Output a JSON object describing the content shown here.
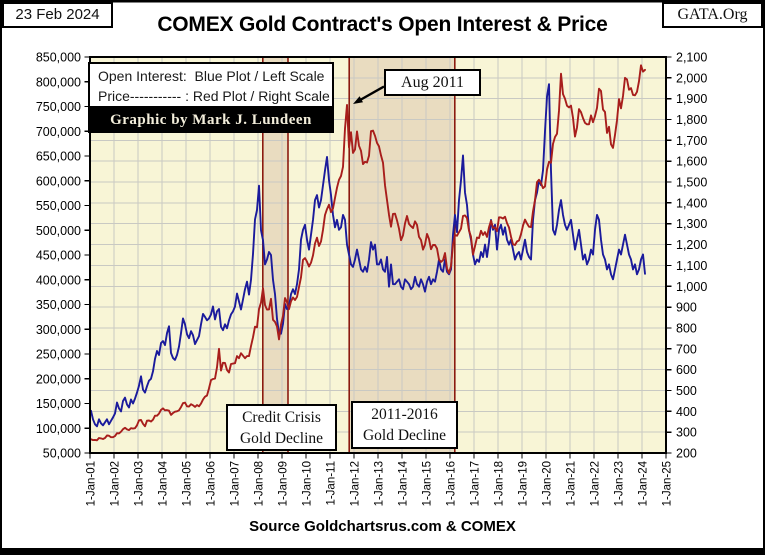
{
  "page": {
    "date": "23 Feb 2024",
    "site": "GATA.Org",
    "source": "Source Goldchartsrus.com & COMEX",
    "credit": "Graphic by Mark J. Lundeen"
  },
  "legend": {
    "line1": "Open Interest:  Blue Plot / Left Scale",
    "line2": "Price----------- : Red Plot / Right Scale"
  },
  "colors": {
    "open_interest": "#1b1b9c",
    "price": "#a81e1c",
    "plot_bg": "#f8f5d6",
    "band_fill": "#e9dcc0",
    "band_edge": "#8b1a10",
    "grid": "#c9c9c3",
    "frame": "#000000"
  },
  "chart_data": {
    "type": "line",
    "title": "COMEX Gold Contract's Open Interest & Price",
    "x_range": [
      2001,
      2025
    ],
    "x_tick_labels": [
      "1-Jan-01",
      "1-Jan-02",
      "1-Jan-03",
      "1-Jan-04",
      "1-Jan-05",
      "1-Jan-06",
      "1-Jan-07",
      "1-Jan-08",
      "1-Jan-09",
      "1-Jan-10",
      "1-Jan-11",
      "1-Jan-12",
      "1-Jan-13",
      "1-Jan-14",
      "1-Jan-15",
      "1-Jan-16",
      "1-Jan-17",
      "1-Jan-18",
      "1-Jan-19",
      "1-Jan-20",
      "1-Jan-21",
      "1-Jan-22",
      "1-Jan-23",
      "1-Jan-24",
      "1-Jan-25"
    ],
    "left_axis": {
      "min": 50000,
      "max": 850000,
      "step": 50000,
      "tick_labels": [
        "850,000",
        "800,000",
        "750,000",
        "700,000",
        "650,000",
        "600,000",
        "550,000",
        "500,000",
        "450,000",
        "400,000",
        "350,000",
        "300,000",
        "250,000",
        "200,000",
        "150,000",
        "100,000",
        "50,000"
      ]
    },
    "right_axis": {
      "min": 200,
      "max": 2100,
      "step": 100,
      "tick_labels": [
        "2,100",
        "2,000",
        "1,900",
        "1,800",
        "1,700",
        "1,600",
        "1,500",
        "1,400",
        "1,300",
        "1,200",
        "1,100",
        "1,000",
        "900",
        "800",
        "700",
        "600",
        "500",
        "400",
        "300",
        "200"
      ]
    },
    "grid": "on",
    "legend_position": "top-left",
    "bands": [
      {
        "id": "credit-crisis",
        "from_year": 2008.2,
        "to_year": 2009.25,
        "label_line1": "Credit Crisis",
        "label_line2": "Gold Decline"
      },
      {
        "id": "2011-2016-decline",
        "from_year": 2011.8,
        "to_year": 2016.2,
        "label_line1": "2011-2016",
        "label_line2": "Gold Decline"
      }
    ],
    "annotations": [
      {
        "id": "aug-2011",
        "text": "Aug 2011"
      }
    ],
    "start_month": "2001-01",
    "end_month": "2024-02",
    "series": [
      {
        "id": "open_interest",
        "name": "Open Interest",
        "axis": "left",
        "color_key": "open_interest",
        "monthly_values": [
          135000,
          118000,
          108000,
          104000,
          118000,
          110000,
          106000,
          112000,
          118000,
          108000,
          115000,
          122000,
          130000,
          152000,
          140000,
          134000,
          155000,
          162000,
          148000,
          142000,
          158000,
          150000,
          160000,
          172000,
          186000,
          205000,
          178000,
          172000,
          185000,
          196000,
          200000,
          215000,
          240000,
          256000,
          248000,
          272000,
          276000,
          268000,
          292000,
          306000,
          252000,
          242000,
          238000,
          248000,
          265000,
          292000,
          322000,
          310000,
          290000,
          282000,
          296000,
          288000,
          270000,
          278000,
          286000,
          310000,
          331000,
          325000,
          318000,
          322000,
          330000,
          346000,
          320000,
          336000,
          341000,
          305000,
          298000,
          310000,
          302000,
          318000,
          330000,
          336000,
          346000,
          372000,
          356000,
          340000,
          360000,
          381000,
          396000,
          370000,
          400000,
          452000,
          522000,
          541000,
          590000,
          500000,
          480000,
          431000,
          441000,
          456000,
          450000,
          400000,
          371000,
          321000,
          291000,
          291000,
          311000,
          351000,
          341000,
          346000,
          371000,
          381000,
          371000,
          391000,
          421000,
          481000,
          501000,
          511000,
          481000,
          461000,
          491000,
          521000,
          561000,
          571000,
          546000,
          561000,
          591000,
          621000,
          648000,
          601000,
          571000,
          531000,
          506000,
          521000,
          501000,
          506000,
          531000,
          521000,
          471000,
          451000,
          431000,
          426000,
          441000,
          461000,
          441000,
          421000,
          416000,
          426000,
          416000,
          441000,
          476000,
          461000,
          471000,
          431000,
          431000,
          441000,
          421000,
          416000,
          446000,
          386000,
          431000,
          391000,
          391000,
          396000,
          401000,
          386000,
          381000,
          401000,
          396000,
          391000,
          381000,
          386000,
          406000,
          391000,
          386000,
          401000,
          391000,
          376000,
          396000,
          406000,
          391000,
          401000,
          396000,
          416000,
          441000,
          421000,
          416000,
          441000,
          416000,
          411000,
          421000,
          491000,
          531000,
          496000,
          561000,
          601000,
          651000,
          576000,
          551000,
          501000,
          481000,
          451000,
          431000,
          441000,
          436000,
          456000,
          446000,
          471000,
          446000,
          476000,
          521000,
          501000,
          511000,
          461000,
          501000,
          511000,
          491000,
          506000,
          481000,
          471000,
          481000,
          461000,
          441000,
          451000,
          456000,
          441000,
          461000,
          481000,
          456000,
          446000,
          441000,
          521000,
          561000,
          576000,
          601000,
          591000,
          621000,
          700000,
          770000,
          795000,
          620000,
          501000,
          491000,
          511000,
          541000,
          561000,
          531000,
          511000,
          501000,
          511000,
          521000,
          491000,
          461000,
          481000,
          501000,
          471000,
          441000,
          451000,
          431000,
          441000,
          461000,
          451000,
          501000,
          531000,
          521000,
          481000,
          451000,
          441000,
          421000,
          431000,
          411000,
          401000,
          421000,
          441000,
          461000,
          451000,
          471000,
          491000,
          471000,
          451000,
          441000,
          421000,
          431000,
          411000,
          421000,
          441000,
          451000,
          412000
        ]
      },
      {
        "id": "price",
        "name": "Price",
        "axis": "right",
        "color_key": "price",
        "monthly_values": [
          266,
          262,
          263,
          261,
          272,
          270,
          267,
          272,
          284,
          283,
          276,
          276,
          281,
          295,
          294,
          302,
          314,
          321,
          313,
          310,
          319,
          317,
          319,
          333,
          357,
          359,
          340,
          328,
          355,
          356,
          351,
          360,
          379,
          379,
          389,
          407,
          414,
          405,
          406,
          403,
          383,
          392,
          398,
          400,
          405,
          420,
          439,
          442,
          424,
          423,
          434,
          429,
          421,
          430,
          424,
          437,
          456,
          470,
          476,
          510,
          550,
          555,
          557,
          611,
          700,
          596,
          633,
          632,
          598,
          586,
          627,
          629,
          631,
          665,
          655,
          679,
          667,
          655,
          665,
          665,
          713,
          755,
          806,
          803,
          890,
          922,
          990,
          910,
          888,
          889,
          940,
          839,
          829,
          807,
          745,
          816,
          858,
          943,
          924,
          890,
          928,
          946,
          934,
          949,
          996,
          1043,
          1127,
          1135,
          1118,
          1095,
          1113,
          1148,
          1205,
          1233,
          1193,
          1215,
          1271,
          1342,
          1370,
          1391,
          1356,
          1373,
          1424,
          1473,
          1511,
          1529,
          1573,
          1757,
          1870,
          1666,
          1739,
          1640,
          1656,
          1743,
          1674,
          1650,
          1586,
          1597,
          1594,
          1626,
          1744,
          1747,
          1722,
          1688,
          1671,
          1628,
          1593,
          1485,
          1414,
          1343,
          1286,
          1347,
          1348,
          1316,
          1276,
          1221,
          1244,
          1301,
          1337,
          1299,
          1288,
          1279,
          1311,
          1295,
          1237,
          1222,
          1176,
          1200,
          1251,
          1227,
          1178,
          1198,
          1198,
          1181,
          1128,
          1117,
          1125,
          1159,
          1086,
          1062,
          1097,
          1200,
          1246,
          1242,
          1260,
          1276,
          1337,
          1340,
          1327,
          1267,
          1238,
          1152,
          1192,
          1234,
          1231,
          1266,
          1246,
          1260,
          1237,
          1283,
          1314,
          1280,
          1282,
          1264,
          1331,
          1330,
          1325,
          1334,
          1303,
          1282,
          1238,
          1201,
          1198,
          1215,
          1220,
          1250,
          1291,
          1320,
          1301,
          1286,
          1284,
          1359,
          1413,
          1500,
          1511,
          1495,
          1471,
          1479,
          1560,
          1597,
          1593,
          1683,
          1716,
          1732,
          1843,
          2020,
          1922,
          1900,
          1866,
          1858,
          1867,
          1808,
          1718,
          1762,
          1850,
          1835,
          1807,
          1784,
          1777,
          1777,
          1820,
          1787,
          1816,
          1856,
          1948,
          1937,
          1848,
          1836,
          1736,
          1765,
          1681,
          1664,
          1726,
          1797,
          1898,
          1854,
          1913,
          2000,
          1992,
          1943,
          1951,
          1918,
          1916,
          1933,
          1984,
          2060,
          2030,
          2038
        ]
      }
    ]
  }
}
